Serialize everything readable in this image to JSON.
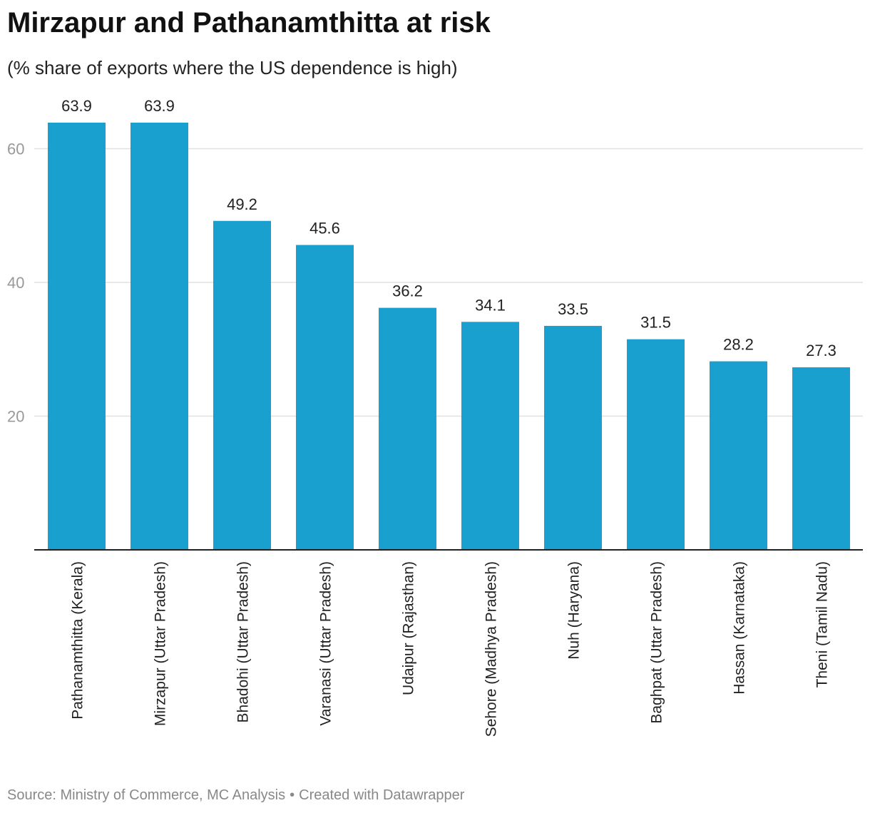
{
  "header": {
    "title": "Mirzapur and Pathanamthitta at risk",
    "subtitle": "(% share of exports where the US dependence is high)"
  },
  "footer": {
    "source": "Source: Ministry of Commerce, MC Analysis",
    "separator": "•",
    "credit": "Created with Datawrapper"
  },
  "chart_data": {
    "type": "bar",
    "title": "Mirzapur and Pathanamthitta at risk",
    "subtitle": "(% share of exports where the US dependence is high)",
    "xlabel": "",
    "ylabel": "",
    "categories": [
      "Pathanamthitta (Kerala)",
      "Mirzapur (Uttar Pradesh)",
      "Bhadohi (Uttar Pradesh)",
      "Varanasi (Uttar Pradesh)",
      "Udaipur (Rajasthan)",
      "Sehore (Madhya Pradesh)",
      "Nuh (Haryana)",
      "Baghpat (Uttar Pradesh)",
      "Hassan (Karnataka)",
      "Theni (Tamil Nadu)"
    ],
    "values": [
      63.9,
      63.9,
      49.2,
      45.6,
      36.2,
      34.1,
      33.5,
      31.5,
      28.2,
      27.3
    ],
    "data_labels": [
      "63.9",
      "63.9",
      "49.2",
      "45.6",
      "36.2",
      "34.1",
      "33.5",
      "31.5",
      "28.2",
      "27.3"
    ],
    "yticks": [
      20,
      40,
      60
    ],
    "ylim": [
      0,
      70
    ],
    "grid": true,
    "bar_color": "#19a0cf",
    "legend": "none"
  }
}
